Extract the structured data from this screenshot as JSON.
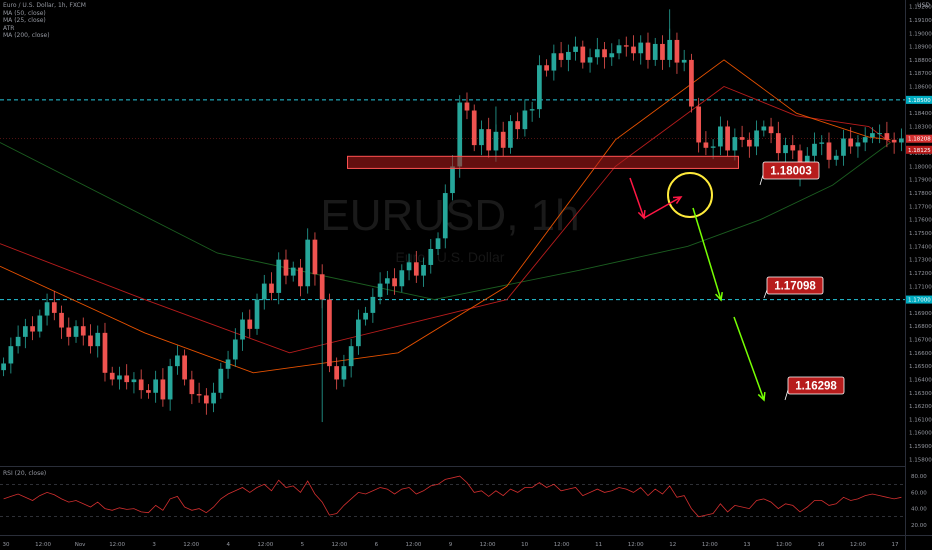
{
  "legend": {
    "symbol_line": "Euro / U.S. Dollar, 1h, FXCM",
    "ma1": "MA (50, close)",
    "ma2": "MA (25, close)",
    "atr": "ATR",
    "ma3": "MA (200, close)"
  },
  "currency": "USD",
  "watermark": {
    "symbol": "EURUSD, 1h",
    "name": "Euro / U.S. Dollar"
  },
  "rsi_label": "RSI (20, close)",
  "colors": {
    "background": "#000000",
    "up": "#26a69a",
    "down": "#ef5350",
    "ma_red": "#b71c1c",
    "ma_green": "#1b5e20",
    "ma_orange": "#e65100",
    "level_line": "#26c6da",
    "zone_fill": "#b71c1c",
    "label_bg": "#b71c1c",
    "arrow_red": "#ff1744",
    "arrow_green": "#76ff03",
    "circle": "#ffeb3b",
    "rsi_line": "#d32f2f"
  },
  "chart_data": {
    "type": "candlestick",
    "price_axis": {
      "ylim": [
        1.1575,
        1.1925
      ],
      "ticks": [
        "1.19200",
        "1.19100",
        "1.19000",
        "1.18900",
        "1.18800",
        "1.18700",
        "1.18600",
        "1.18500",
        "1.18400",
        "1.18300",
        "1.18200",
        "1.18100",
        "1.18000",
        "1.17900",
        "1.17800",
        "1.17700",
        "1.17600",
        "1.17500",
        "1.17400",
        "1.17300",
        "1.17200",
        "1.17100",
        "1.17000",
        "1.16900",
        "1.16800",
        "1.16700",
        "1.16600",
        "1.16500",
        "1.16400",
        "1.16300",
        "1.16200",
        "1.16100",
        "1.16000",
        "1.15900",
        "1.15800"
      ],
      "badges": [
        {
          "value": 1.185,
          "text": "1.18500",
          "kind": "level"
        },
        {
          "value": 1.18208,
          "text": "1.18208",
          "kind": "last"
        },
        {
          "value": 1.18125,
          "text": "1.18125",
          "kind": "sub"
        },
        {
          "value": 1.17,
          "text": "1.17000",
          "kind": "level"
        }
      ]
    },
    "time_axis": {
      "labels": [
        "30",
        "12:00",
        "Nov",
        "12:00",
        "3",
        "12:00",
        "4",
        "12:00",
        "5",
        "12:00",
        "6",
        "12:00",
        "9",
        "12:00",
        "10",
        "12:00",
        "11",
        "12:00",
        "12",
        "12:00",
        "13",
        "12:00",
        "16",
        "12:00",
        "17"
      ]
    },
    "levels": [
      1.185,
      1.17
    ],
    "zone": {
      "top": 1.18076,
      "bottom": 1.17985,
      "x_start": 48,
      "x_end": 102
    },
    "targets": [
      {
        "value": "1.18003"
      },
      {
        "value": "1.17098"
      },
      {
        "value": "1.16298"
      }
    ],
    "rsi_levels": [
      "80.00",
      "60.00",
      "40.00",
      "20.00"
    ],
    "rsi_bands": [
      70,
      30
    ],
    "rsi_range": [
      10,
      90
    ],
    "x_range": [
      0,
      125
    ],
    "closes": [
      1.1652,
      1.1665,
      1.1672,
      1.168,
      1.1676,
      1.1688,
      1.1698,
      1.169,
      1.1679,
      1.1672,
      1.168,
      1.1673,
      1.1665,
      1.1675,
      1.1645,
      1.164,
      1.1643,
      1.1638,
      1.164,
      1.1632,
      1.163,
      1.164,
      1.1625,
      1.165,
      1.1658,
      1.164,
      1.1629,
      1.1628,
      1.1622,
      1.163,
      1.1648,
      1.1655,
      1.167,
      1.1685,
      1.1678,
      1.17,
      1.1712,
      1.1705,
      1.173,
      1.1718,
      1.1724,
      1.171,
      1.1745,
      1.1719,
      1.17,
      1.165,
      1.164,
      1.165,
      1.1665,
      1.1685,
      1.169,
      1.1702,
      1.1712,
      1.1716,
      1.171,
      1.1722,
      1.1728,
      1.1718,
      1.1726,
      1.1738,
      1.1746,
      1.178,
      1.18,
      1.1848,
      1.1842,
      1.1816,
      1.1828,
      1.1812,
      1.1826,
      1.1814,
      1.1834,
      1.1828,
      1.1842,
      1.1843,
      1.1876,
      1.1872,
      1.1885,
      1.188,
      1.1886,
      1.189,
      1.1878,
      1.1882,
      1.1888,
      1.1882,
      1.1885,
      1.1891,
      1.189,
      1.1885,
      1.1893,
      1.188,
      1.1892,
      1.188,
      1.1895,
      1.1878,
      1.188,
      1.1845,
      1.1818,
      1.1814,
      1.1815,
      1.183,
      1.1812,
      1.1822,
      1.182,
      1.1815,
      1.1827,
      1.183,
      1.1825,
      1.181,
      1.1816,
      1.1812,
      1.18,
      1.1808,
      1.1817,
      1.1818,
      1.1805,
      1.1808,
      1.1821,
      1.1815,
      1.1818,
      1.1822,
      1.1825,
      1.1825,
      1.182,
      1.1818,
      1.1821
    ],
    "series": [
      {
        "values": [
          [
            0,
            1.1818
          ],
          [
            30,
            1.1735
          ],
          [
            60,
            1.17
          ],
          [
            80,
            1.1722
          ],
          [
            95,
            1.174
          ],
          [
            105,
            1.176
          ],
          [
            115,
            1.1786
          ],
          [
            123,
            1.1818
          ]
        ]
      },
      {
        "values": [
          [
            0,
            1.1742
          ],
          [
            20,
            1.17
          ],
          [
            40,
            1.166
          ],
          [
            55,
            1.168
          ],
          [
            70,
            1.17
          ],
          [
            85,
            1.18
          ],
          [
            100,
            1.186
          ],
          [
            110,
            1.1838
          ],
          [
            120,
            1.183
          ],
          [
            123,
            1.1818
          ]
        ]
      },
      {
        "values": [
          [
            0,
            1.1725
          ],
          [
            20,
            1.1675
          ],
          [
            35,
            1.1645
          ],
          [
            55,
            1.166
          ],
          [
            70,
            1.171
          ],
          [
            85,
            1.182
          ],
          [
            100,
            1.188
          ],
          [
            110,
            1.184
          ],
          [
            120,
            1.1822
          ],
          [
            123,
            1.182
          ]
        ]
      }
    ],
    "rsi": [
      52,
      55,
      58,
      54,
      50,
      56,
      60,
      57,
      52,
      48,
      50,
      46,
      42,
      48,
      40,
      38,
      41,
      39,
      40,
      36,
      35,
      44,
      38,
      52,
      55,
      42,
      38,
      40,
      35,
      42,
      52,
      58,
      62,
      66,
      60,
      66,
      70,
      62,
      75,
      66,
      68,
      60,
      74,
      58,
      48,
      32,
      34,
      44,
      52,
      60,
      58,
      62,
      66,
      64,
      58,
      64,
      66,
      58,
      62,
      68,
      70,
      76,
      78,
      80,
      72,
      60,
      62,
      55,
      62,
      56,
      64,
      60,
      66,
      66,
      72,
      66,
      70,
      62,
      64,
      66,
      56,
      60,
      64,
      60,
      62,
      66,
      64,
      60,
      66,
      56,
      64,
      58,
      68,
      54,
      56,
      40,
      30,
      32,
      34,
      46,
      36,
      44,
      42,
      40,
      50,
      52,
      48,
      40,
      46,
      44,
      36,
      42,
      50,
      50,
      44,
      46,
      54,
      50,
      52,
      56,
      58,
      56,
      54,
      52,
      54
    ]
  }
}
